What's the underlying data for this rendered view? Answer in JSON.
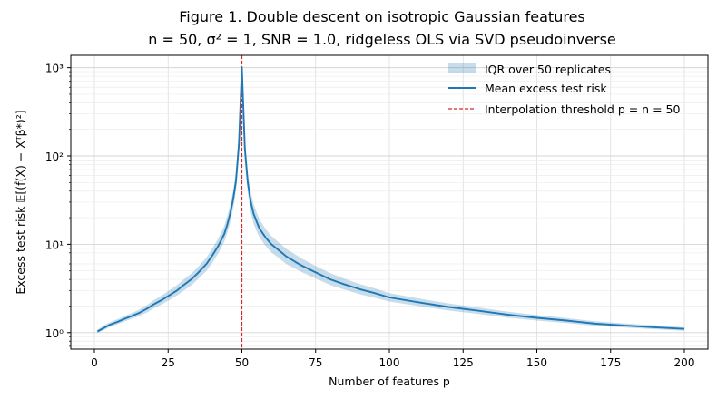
{
  "chart_data": {
    "type": "line",
    "title_line1": "Figure 1.  Double descent on isotropic Gaussian features",
    "title_line2": "n = 50,  σ² = 1,  SNR = 1.0,  ridgeless OLS via SVD pseudoinverse",
    "xlabel": "Number of features  p",
    "ylabel": "Excess test risk  𝔼[(f̂(X) − Xᵀβ*)²]",
    "xlim": [
      -8,
      208
    ],
    "ylim": [
      0.65,
      1380
    ],
    "yscale": "log",
    "grid": true,
    "x_ticks": [
      0,
      25,
      50,
      75,
      100,
      125,
      150,
      175,
      200
    ],
    "y_ticks": [
      1,
      10,
      100,
      1000
    ],
    "y_tick_labels": [
      "10⁰",
      "10¹",
      "10²",
      "10³"
    ],
    "legend_position": "upper right",
    "legend": [
      {
        "label": "IQR over 50 replicates",
        "kind": "band",
        "color": "#1f77b4"
      },
      {
        "label": "Mean excess test risk",
        "kind": "line",
        "color": "#1f77b4"
      },
      {
        "label": "Interpolation threshold p = n = 50",
        "kind": "dashed",
        "color": "#d62728"
      }
    ],
    "threshold_x": 50,
    "series": [
      {
        "name": "Mean excess test risk",
        "color": "#1f77b4",
        "x": [
          1,
          3,
          5,
          8,
          10,
          13,
          15,
          18,
          20,
          23,
          25,
          28,
          30,
          33,
          35,
          38,
          40,
          42,
          44,
          45,
          46,
          47,
          48,
          49,
          50,
          51,
          52,
          53,
          54,
          55,
          56,
          58,
          60,
          63,
          65,
          70,
          75,
          80,
          85,
          90,
          95,
          100,
          110,
          120,
          130,
          140,
          150,
          160,
          170,
          180,
          190,
          200
        ],
        "y": [
          1.03,
          1.12,
          1.22,
          1.33,
          1.42,
          1.56,
          1.66,
          1.88,
          2.08,
          2.36,
          2.6,
          3.0,
          3.4,
          4.05,
          4.7,
          6.0,
          7.5,
          9.6,
          13,
          16.5,
          22,
          32,
          52,
          140,
          1000,
          120,
          50,
          30,
          22,
          18,
          15,
          12,
          10,
          8.3,
          7.3,
          5.8,
          4.8,
          4.0,
          3.5,
          3.1,
          2.8,
          2.5,
          2.2,
          1.95,
          1.77,
          1.6,
          1.47,
          1.37,
          1.26,
          1.2,
          1.15,
          1.1
        ]
      },
      {
        "name": "IQR over 50 replicates",
        "color": "#1f77b4",
        "x": [
          1,
          3,
          5,
          8,
          10,
          13,
          15,
          18,
          20,
          23,
          25,
          28,
          30,
          33,
          35,
          38,
          40,
          42,
          44,
          45,
          46,
          47,
          48,
          49,
          50,
          51,
          52,
          53,
          54,
          55,
          56,
          58,
          60,
          63,
          65,
          70,
          75,
          80,
          85,
          90,
          95,
          100,
          110,
          120,
          130,
          140,
          150,
          160,
          170,
          180,
          190,
          200
        ],
        "low": [
          0.99,
          1.06,
          1.15,
          1.25,
          1.33,
          1.45,
          1.53,
          1.7,
          1.87,
          2.1,
          2.3,
          2.63,
          2.95,
          3.45,
          4.0,
          5.0,
          6.2,
          7.9,
          10.6,
          13.3,
          17.5,
          25,
          40,
          105,
          850,
          90,
          38,
          23,
          17,
          14,
          12,
          9.6,
          8.1,
          6.8,
          6.0,
          4.9,
          4.1,
          3.45,
          3.05,
          2.72,
          2.48,
          2.25,
          2.0,
          1.78,
          1.63,
          1.48,
          1.37,
          1.28,
          1.19,
          1.14,
          1.09,
          1.05
        ],
        "high": [
          1.08,
          1.19,
          1.3,
          1.43,
          1.53,
          1.69,
          1.81,
          2.07,
          2.32,
          2.66,
          2.95,
          3.45,
          3.92,
          4.72,
          5.5,
          7.1,
          9.0,
          11.7,
          16,
          20.5,
          27.5,
          40,
          66,
          180,
          1020,
          160,
          65,
          39,
          28.5,
          23,
          19,
          15,
          12.4,
          10.2,
          8.9,
          7.0,
          5.7,
          4.7,
          4.05,
          3.55,
          3.18,
          2.8,
          2.44,
          2.14,
          1.93,
          1.73,
          1.58,
          1.46,
          1.34,
          1.27,
          1.21,
          1.15
        ]
      }
    ]
  }
}
